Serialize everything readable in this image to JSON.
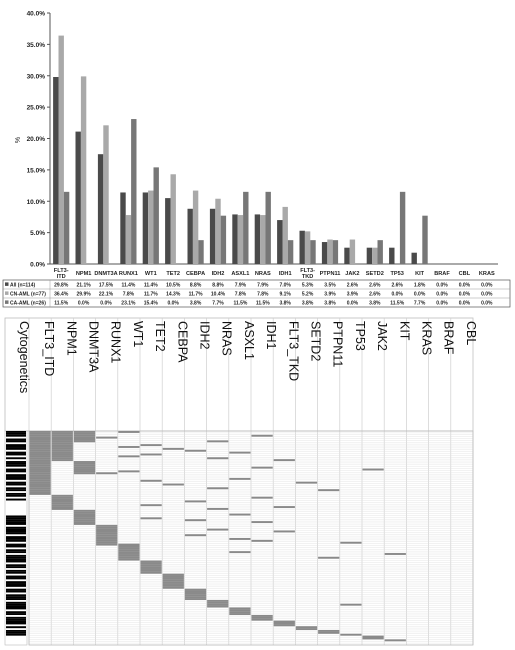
{
  "bar_chart": {
    "ylabel": "%",
    "colors": {
      "All": "#4a4a4a",
      "CN-AML": "#a9a9a9",
      "CA-AML": "#777777"
    }
  },
  "heatmap_panel": {
    "cytogenetics_label": "Cytogenetics",
    "colors": {
      "mutation": "#8a8a8a",
      "cytogenetics": "#000000",
      "grid": "#e0e0e0"
    }
  },
  "chart_data": [
    {
      "type": "bar",
      "title": "",
      "xlabel": "",
      "ylabel": "%",
      "ylim": [
        0,
        40
      ],
      "yticks": [
        "0.0%",
        "5.0%",
        "10.0%",
        "15.0%",
        "20.0%",
        "25.0%",
        "30.0%",
        "35.0%",
        "40.0%"
      ],
      "legend": "table-below",
      "grid": false,
      "categories": [
        "FLT3-ITD",
        "NPM1",
        "DNMT3A",
        "RUNX1",
        "WT1",
        "TET2",
        "CEBPA",
        "IDH2",
        "ASXL1",
        "NRAS",
        "IDH1",
        "FLT3-TKD",
        "PTPN11",
        "JAK2",
        "SETD2",
        "TP53",
        "KIT",
        "BRAF",
        "CBL",
        "KRAS"
      ],
      "series": [
        {
          "name": "All (n=114)",
          "key": "All",
          "values": [
            29.8,
            21.1,
            17.5,
            11.4,
            11.4,
            10.5,
            8.8,
            8.8,
            7.9,
            7.9,
            7.0,
            5.3,
            3.5,
            2.6,
            2.6,
            2.6,
            1.8,
            0.0,
            0.0,
            0.0
          ],
          "labels": [
            "29.8%",
            "21.1%",
            "17.5%",
            "11.4%",
            "11.4%",
            "10.5%",
            "8.8%",
            "8.8%",
            "7.9%",
            "7.9%",
            "7.0%",
            "5.3%",
            "3.5%",
            "2.6%",
            "2.6%",
            "2.6%",
            "1.8%",
            "0.0%",
            "0.0%",
            "0.0%"
          ]
        },
        {
          "name": "CN-AML (n=77)",
          "key": "CN-AML",
          "values": [
            36.4,
            29.9,
            22.1,
            7.8,
            11.7,
            14.3,
            11.7,
            10.4,
            7.8,
            7.8,
            9.1,
            5.2,
            3.9,
            3.9,
            2.6,
            0.0,
            0.0,
            0.0,
            0.0,
            0.0
          ],
          "labels": [
            "36.4%",
            "29.9%",
            "22.1%",
            "7.8%",
            "11.7%",
            "14.3%",
            "11.7%",
            "10.4%",
            "7.8%",
            "7.8%",
            "9.1%",
            "5.2%",
            "3.9%",
            "3.9%",
            "2.6%",
            "0.0%",
            "0.0%",
            "0.0%",
            "0.0%",
            "0.0%"
          ]
        },
        {
          "name": "CA-AML (n=26)",
          "key": "CA-AML",
          "values": [
            11.5,
            0.0,
            0.0,
            23.1,
            15.4,
            0.0,
            3.8,
            7.7,
            11.5,
            11.5,
            3.8,
            3.8,
            3.8,
            0.0,
            3.8,
            11.5,
            7.7,
            0.0,
            0.0,
            0.0
          ],
          "labels": [
            "11.5%",
            "0.0%",
            "0.0%",
            "23.1%",
            "15.4%",
            "0.0%",
            "3.8%",
            "7.7%",
            "11.5%",
            "11.5%",
            "3.8%",
            "3.8%",
            "3.8%",
            "0.0%",
            "3.8%",
            "11.5%",
            "7.7%",
            "0.0%",
            "0.0%",
            "0.0%"
          ]
        }
      ]
    },
    {
      "type": "heatmap",
      "title": "",
      "columns": [
        "FLT3_ITD",
        "NPM1",
        "DNMT3A",
        "RUNX1",
        "WT1",
        "TET2",
        "CEBPA",
        "IDH2",
        "NRAS",
        "ASXL1",
        "IDH1",
        "FLT3_TKD",
        "SETD2",
        "PTPN11",
        "TP53",
        "JAK2",
        "KIT",
        "KRAS",
        "BRAF",
        "CBL"
      ],
      "row_count": 114,
      "cytogenetics_abnormal_rows": [
        0,
        1,
        2,
        4,
        5,
        7,
        8,
        9,
        11,
        12,
        14,
        16,
        17,
        18,
        20,
        21,
        23,
        24,
        25,
        27,
        28,
        30,
        31,
        33,
        34,
        36,
        45,
        46,
        47,
        48,
        49,
        51,
        52,
        53,
        54,
        56,
        57,
        58,
        60,
        61,
        63,
        64,
        66,
        67,
        68,
        69,
        71,
        72,
        74,
        75,
        77,
        78,
        80,
        81,
        82,
        84,
        85,
        87,
        88,
        89,
        91,
        92,
        93,
        94,
        96,
        97,
        99,
        100,
        101,
        102,
        104,
        106,
        107,
        108
      ],
      "mutation_rows": {
        "FLT3_ITD": [
          0,
          1,
          2,
          3,
          4,
          5,
          6,
          7,
          8,
          9,
          10,
          11,
          12,
          13,
          14,
          15,
          16,
          17,
          18,
          19,
          20,
          21,
          22,
          23,
          24,
          25,
          26,
          27,
          28,
          29,
          30,
          31,
          32,
          33
        ],
        "NPM1": [
          0,
          1,
          2,
          3,
          4,
          5,
          6,
          7,
          8,
          9,
          10,
          11,
          12,
          13,
          14,
          15,
          34,
          35,
          36,
          37,
          38,
          39,
          40,
          41
        ],
        "DNMT3A": [
          0,
          1,
          2,
          3,
          4,
          5,
          16,
          17,
          18,
          19,
          20,
          21,
          22,
          42,
          43,
          44,
          45,
          46,
          47,
          48,
          49
        ],
        "RUNX1": [
          3,
          22,
          50,
          51,
          52,
          53,
          54,
          55,
          56,
          57,
          58,
          59,
          60
        ],
        "WT1": [
          0,
          8,
          13,
          21,
          60,
          61,
          62,
          63,
          64,
          65,
          66,
          67,
          68
        ],
        "TET2": [
          7,
          12,
          26,
          39,
          46,
          69,
          70,
          71,
          72,
          73,
          74,
          75
        ],
        "CEBPA": [
          9,
          28,
          76,
          77,
          78,
          79,
          80,
          81,
          82,
          83
        ],
        "IDH2": [
          10,
          37,
          47,
          55,
          84,
          85,
          86,
          87,
          88,
          89
        ],
        "NRAS": [
          5,
          14,
          30,
          41,
          52,
          90,
          91,
          92,
          93
        ],
        "ASXL1": [
          11,
          25,
          44,
          57,
          64,
          94,
          95,
          96,
          97
        ],
        "IDH1": [
          2,
          19,
          35,
          48,
          58,
          98,
          99,
          100
        ],
        "FLT3_TKD": [
          15,
          40,
          53,
          101,
          102,
          103
        ],
        "SETD2": [
          27,
          104,
          105
        ],
        "PTPN11": [
          31,
          67,
          106,
          107
        ],
        "TP53": [
          59,
          92,
          108
        ],
        "JAK2": [
          20,
          109,
          110
        ],
        "KIT": [
          65,
          111
        ],
        "KRAS": [],
        "BRAF": [],
        "CBL": []
      }
    }
  ]
}
